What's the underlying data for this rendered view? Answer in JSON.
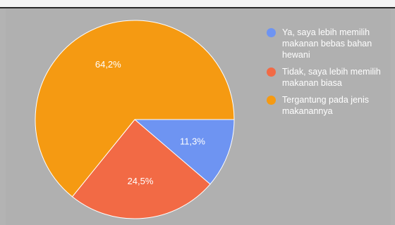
{
  "chart_data": {
    "type": "pie",
    "slices": [
      {
        "label": "Ya, saya lebih memilih makanan bebas bahan hewani",
        "value": 11.3,
        "display": "11,3%",
        "color": "#6e94f2"
      },
      {
        "label": "Tidak, saya lebih memilih makanan biasa",
        "value": 24.5,
        "display": "24,5%",
        "color": "#f26a45"
      },
      {
        "label": "Tergantung pada jenis makanannya",
        "value": 64.2,
        "display": "64,2%",
        "color": "#f59a12"
      }
    ],
    "legend_position": "right"
  }
}
